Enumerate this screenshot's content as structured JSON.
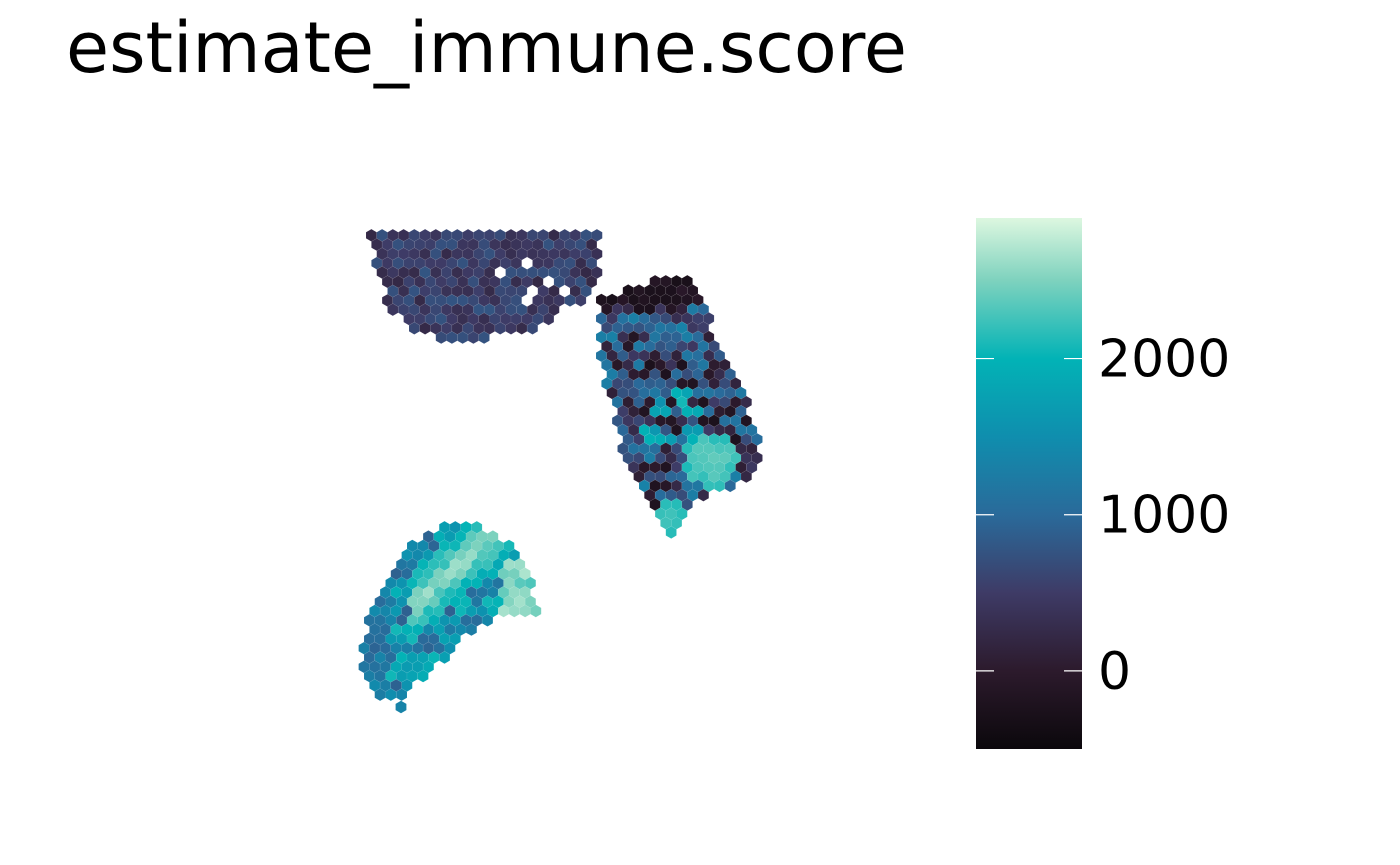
{
  "chart_data": {
    "type": "heatmap",
    "subtype": "spatial-hex-spot-map",
    "title": "estimate_immune.score",
    "xlabel": "",
    "ylabel": "",
    "grid": false,
    "axes_visible": false,
    "legend": {
      "type": "colorbar",
      "position": "right",
      "title": "",
      "range": [
        -500,
        2900
      ],
      "ticks": [
        0,
        1000,
        2000
      ],
      "tick_labels": [
        "0",
        "1000",
        "2000"
      ],
      "colormap_stops": [
        {
          "value": -500,
          "color": "#0b080c"
        },
        {
          "value": 0,
          "color": "#2c1a2c"
        },
        {
          "value": 500,
          "color": "#3e3b66"
        },
        {
          "value": 1000,
          "color": "#2a6a9a"
        },
        {
          "value": 1500,
          "color": "#0f8eae"
        },
        {
          "value": 2000,
          "color": "#02b3b6"
        },
        {
          "value": 2500,
          "color": "#7ed2be"
        },
        {
          "value": 2900,
          "color": "#ddf7e0"
        }
      ]
    },
    "regions": [
      {
        "name": "upper-left section",
        "approx_score_range": [
          -100,
          900
        ],
        "typical_score": 500
      },
      {
        "name": "right section",
        "approx_score_range": [
          -300,
          2600
        ],
        "typical_score": 550,
        "hotspots": [
          {
            "location": "lower-right",
            "score": 2500
          },
          {
            "location": "bottom tip",
            "score": 2300
          }
        ]
      },
      {
        "name": "lower-left section",
        "approx_score_range": [
          600,
          2800
        ],
        "typical_score": 1500,
        "hotspots": [
          {
            "location": "lower-right diagonal band",
            "score": 2600
          }
        ]
      }
    ]
  }
}
